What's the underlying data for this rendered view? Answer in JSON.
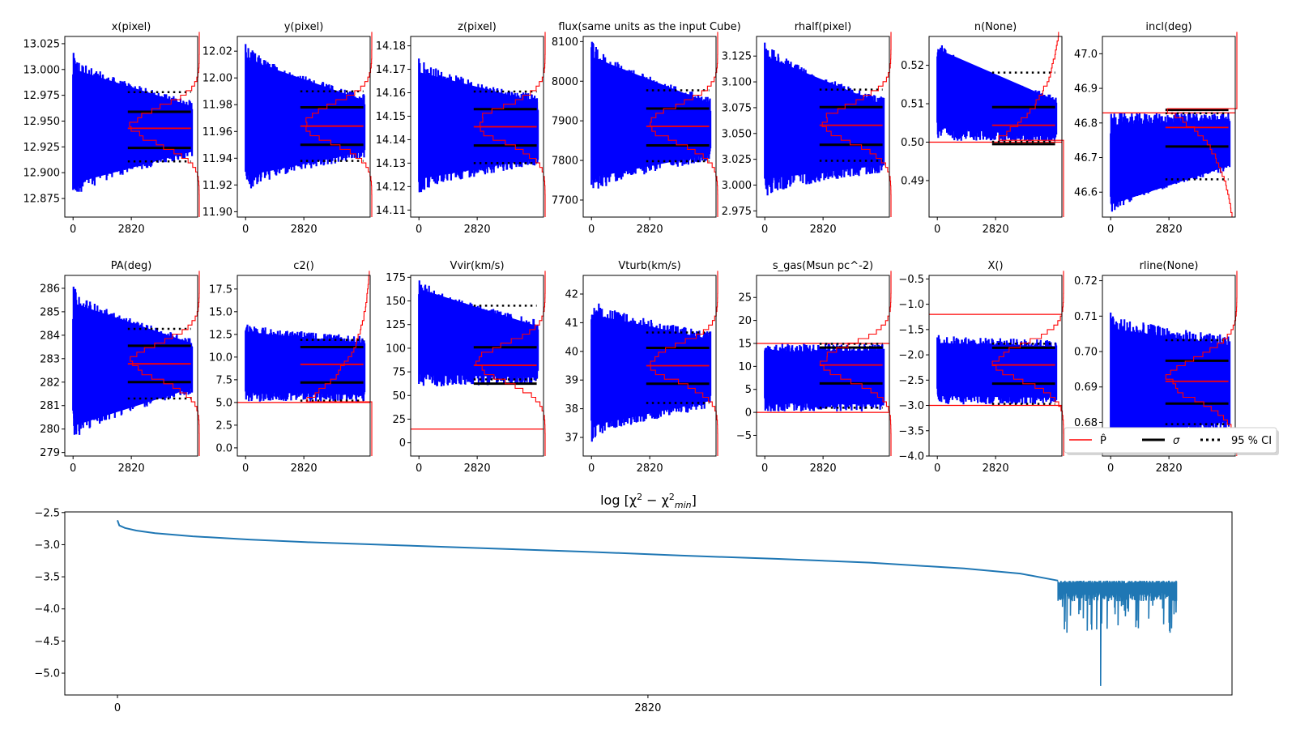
{
  "figure": {
    "colors": {
      "trace": "#0000ff",
      "estimate": "#ff0000",
      "histogram": "#ff0000",
      "sigma": "#000000",
      "ci": "#000000",
      "chi2_line": "#1f77b4"
    }
  },
  "legend": {
    "items": [
      {
        "label": "P̂",
        "style": "solid-red"
      },
      {
        "label": "σ",
        "style": "solid-black"
      },
      {
        "label": "95 % CI",
        "style": "dotted-black"
      }
    ],
    "placement": "lower-right of last row"
  },
  "chart_data": [
    {
      "type": "line",
      "title": "x(pixel)",
      "xticks": [
        "0",
        "2820"
      ],
      "xlim": [
        -400,
        6030
      ],
      "ylim": [
        12.857,
        13.032
      ],
      "yticks": [
        "12.875",
        "12.900",
        "12.925",
        "12.950",
        "12.975",
        "13.000",
        "13.025"
      ],
      "ytick_values": [
        12.875,
        12.9,
        12.925,
        12.95,
        12.975,
        13.0,
        13.025
      ],
      "estimate": 12.943,
      "sigma": [
        12.924,
        12.959
      ],
      "ci95": [
        12.911,
        12.978
      ],
      "trace_range_start": [
        12.872,
        13.018
      ],
      "trace_range_end": [
        12.915,
        12.97
      ],
      "hist_ext": "none"
    },
    {
      "type": "line",
      "title": "y(pixel)",
      "xticks": [
        "0",
        "2820"
      ],
      "xlim": [
        -400,
        6030
      ],
      "ylim": [
        11.896,
        12.031
      ],
      "yticks": [
        "11.90",
        "11.92",
        "11.94",
        "11.96",
        "11.98",
        "12.00",
        "12.02"
      ],
      "ytick_values": [
        11.9,
        11.92,
        11.94,
        11.96,
        11.98,
        12.0,
        12.02
      ],
      "estimate": 11.964,
      "sigma": [
        11.95,
        11.978
      ],
      "ci95": [
        11.938,
        11.99
      ],
      "trace_range_start": [
        11.913,
        12.028
      ],
      "trace_range_end": [
        11.94,
        11.988
      ],
      "hist_ext": "none"
    },
    {
      "type": "line",
      "title": "z(pixel)",
      "xticks": [
        "0",
        "2820"
      ],
      "xlim": [
        -400,
        6030
      ],
      "ylim": [
        14.107,
        14.184
      ],
      "yticks": [
        "14.11",
        "14.12",
        "14.13",
        "14.14",
        "14.15",
        "14.16",
        "14.17",
        "14.18"
      ],
      "ytick_values": [
        14.11,
        14.12,
        14.13,
        14.14,
        14.15,
        14.16,
        14.17,
        14.18
      ],
      "estimate": 14.1455,
      "sigma": [
        14.1375,
        14.153
      ],
      "ci95": [
        14.13,
        14.1605
      ],
      "trace_range_start": [
        14.116,
        14.176
      ],
      "trace_range_end": [
        14.129,
        14.159
      ],
      "hist_ext": "none"
    },
    {
      "type": "line",
      "title": "flux(same units as the input Cube)",
      "xticks": [
        "0",
        "2820"
      ],
      "xlim": [
        -400,
        6030
      ],
      "ylim": [
        7657,
        8113
      ],
      "yticks": [
        "7700",
        "7800",
        "7900",
        "8000",
        "8100"
      ],
      "ytick_values": [
        7700,
        7800,
        7900,
        8000,
        8100
      ],
      "estimate": 7886,
      "sigma": [
        7838,
        7931
      ],
      "ci95": [
        7798,
        7977
      ],
      "trace_range_start": [
        7708,
        8110
      ],
      "trace_range_end": [
        7800,
        7960
      ],
      "hist_ext": "none"
    },
    {
      "type": "line",
      "title": "rhalf(pixel)",
      "xticks": [
        "0",
        "2820"
      ],
      "xlim": [
        -400,
        6030
      ],
      "ylim": [
        2.969,
        3.144
      ],
      "yticks": [
        "2.975",
        "3.000",
        "3.025",
        "3.050",
        "3.075",
        "3.100",
        "3.125"
      ],
      "ytick_values": [
        2.975,
        3.0,
        3.025,
        3.05,
        3.075,
        3.1,
        3.125
      ],
      "estimate": 3.058,
      "sigma": [
        3.039,
        3.0755
      ],
      "ci95": [
        3.0235,
        3.0925
      ],
      "trace_range_start": [
        2.987,
        3.144
      ],
      "trace_range_end": [
        3.012,
        3.085
      ],
      "hist_ext": "none"
    },
    {
      "type": "line",
      "title": "n(None)",
      "xticks": [
        "0",
        "2820"
      ],
      "xlim": [
        -400,
        6030
      ],
      "ylim": [
        0.4805,
        0.5275
      ],
      "yticks": [
        "0.49",
        "0.50",
        "0.51",
        "0.52"
      ],
      "ytick_values": [
        0.49,
        0.5,
        0.51,
        0.52
      ],
      "estimate": 0.5044,
      "sigma": [
        0.4995,
        0.5091
      ],
      "ci95": [
        0.5001,
        0.5181
      ],
      "bound_lines": [
        0.5
      ],
      "trace_range_start": [
        0.5005,
        0.5275
      ],
      "trace_range_end": [
        0.5001,
        0.512
      ],
      "hist_ext": "low"
    },
    {
      "type": "line",
      "title": "incl(deg)",
      "xticks": [
        "0",
        "2820"
      ],
      "xlim": [
        -400,
        6030
      ],
      "ylim": [
        46.528,
        47.05
      ],
      "yticks": [
        "46.6",
        "46.7",
        "46.8",
        "46.9",
        "47.0"
      ],
      "ytick_values": [
        46.6,
        46.7,
        46.8,
        46.9,
        47.0
      ],
      "estimate": 46.787,
      "sigma": [
        46.732,
        46.838
      ],
      "ci95": [
        46.637,
        46.828
      ],
      "bound_lines": [
        46.829
      ],
      "trace_range_start": [
        46.528,
        46.829
      ],
      "trace_range_end": [
        46.66,
        46.829
      ],
      "hist_ext": "high"
    },
    {
      "type": "line",
      "title": "PA(deg)",
      "xticks": [
        "0",
        "2820"
      ],
      "xlim": [
        -400,
        6030
      ],
      "ylim": [
        278.85,
        286.55
      ],
      "yticks": [
        "279",
        "280",
        "281",
        "282",
        "283",
        "284",
        "285",
        "286"
      ],
      "ytick_values": [
        279,
        280,
        281,
        282,
        283,
        284,
        285,
        286
      ],
      "estimate": 282.78,
      "sigma": [
        282.0,
        283.55
      ],
      "ci95": [
        281.3,
        284.27
      ],
      "trace_range_start": [
        279.3,
        286.2
      ],
      "trace_range_end": [
        281.5,
        283.9
      ],
      "hist_ext": "none"
    },
    {
      "type": "line",
      "title": "c2()",
      "xticks": [
        "0",
        "2820"
      ],
      "xlim": [
        -400,
        6030
      ],
      "ylim": [
        -0.9,
        19.0
      ],
      "yticks": [
        "0.0",
        "2.5",
        "5.0",
        "7.5",
        "10.0",
        "12.5",
        "15.0",
        "17.5"
      ],
      "ytick_values": [
        0,
        2.5,
        5.0,
        7.5,
        10.0,
        12.5,
        15.0,
        17.5
      ],
      "estimate": 9.2,
      "sigma": [
        7.2,
        11.1
      ],
      "ci95": [
        5.2,
        11.9
      ],
      "bound_lines": [
        5.0
      ],
      "trace_range_start": [
        5.1,
        13.8
      ],
      "trace_range_end": [
        5.1,
        12.3
      ],
      "hist_ext": "low"
    },
    {
      "type": "line",
      "title": "Vvir(km/s)",
      "xticks": [
        "0",
        "2820"
      ],
      "xlim": [
        -400,
        6030
      ],
      "ylim": [
        -14,
        177
      ],
      "yticks": [
        "0",
        "25",
        "50",
        "75",
        "100",
        "125",
        "150",
        "175"
      ],
      "ytick_values": [
        0,
        25,
        50,
        75,
        100,
        125,
        150,
        175
      ],
      "estimate": 82,
      "sigma": [
        62.5,
        101
      ],
      "ci95": [
        67,
        145
      ],
      "bound_lines": [
        14.5
      ],
      "trace_range_start": [
        58,
        177
      ],
      "trace_range_end": [
        62,
        130
      ],
      "hist_ext": "none"
    },
    {
      "type": "line",
      "title": "Vturb(km/s)",
      "xticks": [
        "0",
        "2820"
      ],
      "xlim": [
        -400,
        6030
      ],
      "ylim": [
        36.35,
        42.65
      ],
      "yticks": [
        "37",
        "38",
        "39",
        "40",
        "41",
        "42"
      ],
      "ytick_values": [
        37,
        38,
        39,
        40,
        41,
        42
      ],
      "estimate": 39.5,
      "sigma": [
        38.87,
        40.12
      ],
      "ci95": [
        38.2,
        40.66
      ],
      "trace_range_start": [
        36.8,
        41.9
      ],
      "trace_range_end": [
        38.0,
        40.7
      ],
      "hist_ext": "none"
    },
    {
      "type": "line",
      "title": "s_gas(Msun pc^-2)",
      "xticks": [
        "0",
        "2820"
      ],
      "xlim": [
        -400,
        6030
      ],
      "ylim": [
        -9.5,
        29.8
      ],
      "yticks": [
        "−5",
        "0",
        "5",
        "10",
        "15",
        "20",
        "25"
      ],
      "ytick_values": [
        -5,
        0,
        5,
        10,
        15,
        20,
        25
      ],
      "estimate": 10.3,
      "sigma": [
        6.3,
        14.1
      ],
      "ci95": [
        1.0,
        14.9
      ],
      "bound_lines": [
        0.0,
        15.0
      ],
      "trace_range_start": [
        0.2,
        15.0
      ],
      "trace_range_end": [
        0.2,
        15.0
      ],
      "hist_ext": "none"
    },
    {
      "type": "line",
      "title": "X()",
      "xticks": [
        "0",
        "2820"
      ],
      "xlim": [
        -400,
        6030
      ],
      "ylim": [
        -4.0,
        -0.43
      ],
      "yticks": [
        "−4.0",
        "−3.5",
        "−3.0",
        "−2.5",
        "−2.0",
        "−1.5",
        "−1.0",
        "−0.5"
      ],
      "ytick_values": [
        -4.0,
        -3.5,
        -3.0,
        -2.5,
        -2.0,
        -1.5,
        -1.0,
        -0.5
      ],
      "estimate": -2.2,
      "sigma": [
        -2.57,
        -1.86
      ],
      "ci95": [
        -2.97,
        -1.78
      ],
      "bound_lines": [
        -3.0,
        -1.2
      ],
      "trace_range_start": [
        -2.98,
        -1.6
      ],
      "trace_range_end": [
        -2.98,
        -1.7
      ],
      "hist_ext": "none"
    },
    {
      "type": "line",
      "title": "rline(None)",
      "xticks": [
        "0",
        "2820"
      ],
      "xlim": [
        -400,
        6030
      ],
      "ylim": [
        0.6705,
        0.7215
      ],
      "yticks": [
        "0.68",
        "0.69",
        "0.70",
        "0.71",
        "0.72"
      ],
      "ytick_values": [
        0.68,
        0.69,
        0.7,
        0.71,
        0.72
      ],
      "estimate": 0.6916,
      "sigma": [
        0.6853,
        0.6974
      ],
      "ci95": [
        0.6795,
        0.7032
      ],
      "trace_range_start": [
        0.6712,
        0.7113
      ],
      "trace_range_end": [
        0.6775,
        0.7045
      ],
      "hist_ext": "none"
    },
    {
      "type": "line",
      "title": "log  [χ² − χ²min]",
      "title_main": "log  [χ",
      "title_sup1": "2",
      "title_mid": " − χ",
      "title_sup2": "2",
      "title_sub": "min",
      "title_end": "]",
      "xticks": [
        "0",
        "2820"
      ],
      "xtick_values": [
        0,
        2820
      ],
      "xlim": [
        -280,
        5925
      ],
      "ylim": [
        -5.34,
        -2.49
      ],
      "yticks": [
        "−5.0",
        "−4.5",
        "−4.0",
        "−3.5",
        "−3.0",
        "−2.5"
      ],
      "ytick_values": [
        -5.0,
        -4.5,
        -4.0,
        -3.5,
        -3.0,
        -2.5
      ],
      "series": [
        {
          "name": "log chi2 diff",
          "x": [
            0,
            10,
            40,
            100,
            200,
            400,
            700,
            1000,
            1500,
            2000,
            2500,
            3000,
            3500,
            4000,
            4500,
            4800,
            5000
          ],
          "y": [
            -2.62,
            -2.7,
            -2.74,
            -2.78,
            -2.82,
            -2.87,
            -2.92,
            -2.96,
            -3.01,
            -3.06,
            -3.11,
            -3.17,
            -3.22,
            -3.28,
            -3.37,
            -3.45,
            -3.56
          ]
        },
        {
          "name": "noisy tail",
          "x_range": [
            5000,
            5630
          ],
          "baseline": -3.63,
          "min_spike": -5.2
        }
      ]
    }
  ]
}
